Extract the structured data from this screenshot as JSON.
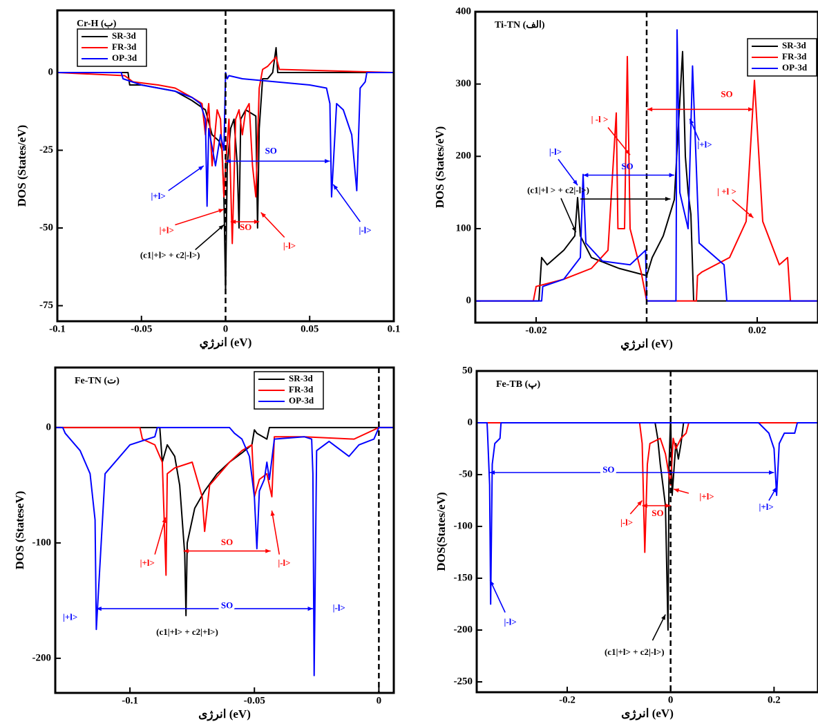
{
  "chart_data": [
    {
      "type": "line",
      "title": "Cr-H (ب)",
      "xlabel": "انرژي (eV)",
      "ylabel": "DOS (States/eV)",
      "xlim": [
        -0.1,
        0.1
      ],
      "ylim": [
        -80,
        20
      ],
      "xticks": [
        -0.1,
        -0.05,
        0,
        0.05,
        0.1
      ],
      "yticks": [
        0,
        -25,
        -50,
        -75
      ],
      "vline": 0,
      "legend": "upper left",
      "series": [
        {
          "name": "SR-3d",
          "color": "#000000",
          "x": [
            -0.1,
            -0.058,
            -0.057,
            -0.05,
            -0.03,
            -0.02,
            -0.012,
            -0.008,
            -0.004,
            -0.002,
            -0.001,
            0,
            0.001,
            0.003,
            0.005,
            0.007,
            0.008,
            0.009,
            0.012,
            0.015,
            0.018,
            0.019,
            0.02,
            0.022,
            0.025,
            0.028,
            0.03,
            0.031,
            0.1
          ],
          "values": [
            0,
            0,
            -4,
            -4,
            -6,
            -9,
            -12,
            -20,
            -22,
            -25,
            -40,
            -70,
            -30,
            -18,
            -15,
            -30,
            -50,
            -15,
            -12,
            -13,
            -14,
            -50,
            -18,
            -2,
            -2,
            0,
            8,
            0,
            0
          ]
        },
        {
          "name": "FR-3d",
          "color": "#ff0000",
          "x": [
            -0.1,
            -0.06,
            -0.055,
            -0.04,
            -0.03,
            -0.02,
            -0.014,
            -0.012,
            -0.01,
            -0.008,
            -0.005,
            -0.003,
            -0.001,
            0,
            0.002,
            0.004,
            0.006,
            0.008,
            0.01,
            0.012,
            0.014,
            0.016,
            0.018,
            0.02,
            0.022,
            0.025,
            0.03,
            0.032,
            0.1
          ],
          "values": [
            0,
            -1,
            -3,
            -4,
            -5,
            -8,
            -10,
            -20,
            -10,
            -30,
            -12,
            -15,
            -40,
            -30,
            -15,
            -55,
            -15,
            -12,
            -20,
            -12,
            -10,
            -30,
            -40,
            -5,
            1,
            2,
            5,
            1,
            0
          ]
        },
        {
          "name": "OP-3d",
          "color": "#0000ff",
          "x": [
            -0.1,
            -0.062,
            -0.061,
            -0.05,
            -0.03,
            -0.02,
            -0.015,
            -0.012,
            -0.011,
            -0.01,
            -0.006,
            -0.003,
            -0.001,
            0,
            0.001,
            0.002,
            0.01,
            0.03,
            0.05,
            0.06,
            0.062,
            0.063,
            0.066,
            0.07,
            0.075,
            0.078,
            0.08,
            0.083,
            0.084,
            0.1
          ],
          "values": [
            0,
            0,
            -2,
            -4,
            -6,
            -8,
            -10,
            -15,
            -43,
            -18,
            -30,
            -20,
            -25,
            0,
            -2,
            -1,
            -2,
            -3,
            -4,
            -5,
            -10,
            -40,
            -10,
            -12,
            -20,
            -38,
            -5,
            -3,
            0,
            0
          ]
        }
      ],
      "annotations": [
        "SO",
        "|+l>",
        "|+l>",
        "SO",
        "|-l>",
        "|-l>",
        "(c1|+l> + c2|-l>)"
      ]
    },
    {
      "type": "line",
      "title": "Ti-TN (الف)",
      "xlabel": "انرژي (eV)",
      "ylabel": "DOS (States/eV)",
      "xlim": [
        -0.031,
        0.031
      ],
      "ylim": [
        -30,
        400
      ],
      "xticks": [
        -0.02,
        0.02
      ],
      "yticks": [
        0,
        100,
        200,
        300,
        400
      ],
      "vline": 0,
      "legend": "upper right",
      "series": [
        {
          "name": "SR-3d",
          "color": "#000000",
          "x": [
            -0.031,
            -0.0195,
            -0.019,
            -0.018,
            -0.015,
            -0.013,
            -0.0125,
            -0.012,
            -0.01,
            -0.005,
            0,
            0.001,
            0.003,
            0.005,
            0.0065,
            0.007,
            0.0075,
            0.008,
            0.0085,
            0.031
          ],
          "values": [
            0,
            0,
            60,
            50,
            70,
            90,
            143,
            90,
            60,
            45,
            35,
            60,
            90,
            140,
            345,
            200,
            150,
            120,
            0,
            0
          ]
        },
        {
          "name": "FR-3d",
          "color": "#ff0000",
          "x": [
            -0.031,
            -0.0205,
            -0.02,
            -0.015,
            -0.01,
            -0.007,
            -0.0055,
            -0.0052,
            -0.004,
            -0.0035,
            -0.003,
            -0.001,
            0,
            0.009,
            0.0092,
            0.01,
            0.015,
            0.018,
            0.0195,
            0.021,
            0.024,
            0.0255,
            0.026,
            0.031
          ],
          "values": [
            0,
            0,
            20,
            30,
            45,
            70,
            260,
            100,
            100,
            338,
            100,
            40,
            0,
            0,
            35,
            40,
            60,
            110,
            305,
            110,
            50,
            60,
            0,
            0
          ]
        },
        {
          "name": "OP-3d",
          "color": "#0000ff",
          "x": [
            -0.031,
            -0.019,
            -0.0188,
            -0.015,
            -0.012,
            -0.0115,
            -0.011,
            -0.008,
            -0.003,
            -0.0002,
            0,
            0.0053,
            0.0055,
            0.006,
            0.0075,
            0.0083,
            0.0095,
            0.014,
            0.0145,
            0.031
          ],
          "values": [
            0,
            0,
            20,
            30,
            60,
            175,
            80,
            55,
            50,
            70,
            0,
            0,
            375,
            150,
            100,
            325,
            80,
            50,
            0,
            0
          ]
        }
      ],
      "annotations": [
        "SO",
        "| -l >",
        "|+l>",
        "|-l>",
        "SO",
        "| +l >",
        "(c1|+l > + c2|-l>)"
      ]
    },
    {
      "type": "line",
      "title": "Fe-TN (ت)",
      "xlabel": "انرژی (eV)",
      "ylabel": "DOS (StateseV)",
      "xlim": [
        -0.13,
        0.006
      ],
      "ylim": [
        -230,
        52
      ],
      "xticks": [
        -0.1,
        -0.05,
        0
      ],
      "yticks": [
        0,
        -100,
        -200
      ],
      "vline": 0,
      "legend": "upper right",
      "series": [
        {
          "name": "SR-3d",
          "color": "#000000",
          "x": [
            -0.13,
            -0.088,
            -0.087,
            -0.085,
            -0.082,
            -0.08,
            -0.078,
            -0.0775,
            -0.077,
            -0.074,
            -0.07,
            -0.065,
            -0.06,
            -0.055,
            -0.051,
            -0.05,
            -0.049,
            -0.045,
            -0.044,
            0.006
          ],
          "values": [
            0,
            0,
            -30,
            -15,
            -25,
            -50,
            -110,
            -163,
            -100,
            -70,
            -55,
            -40,
            -30,
            -22,
            -15,
            -2,
            -5,
            -10,
            0,
            0
          ]
        },
        {
          "name": "FR-3d",
          "color": "#ff0000",
          "x": [
            -0.13,
            -0.096,
            -0.095,
            -0.09,
            -0.087,
            -0.0855,
            -0.085,
            -0.082,
            -0.075,
            -0.071,
            -0.07,
            -0.068,
            -0.06,
            -0.055,
            -0.051,
            -0.05,
            -0.048,
            -0.045,
            -0.043,
            -0.042,
            -0.03,
            -0.01,
            0,
            0.006
          ],
          "values": [
            0,
            0,
            -10,
            -15,
            -30,
            -128,
            -40,
            -35,
            -30,
            -60,
            -90,
            -50,
            -30,
            -20,
            -15,
            -60,
            -45,
            -40,
            -60,
            -8,
            -8,
            -10,
            0,
            0
          ]
        },
        {
          "name": "OP-3d",
          "color": "#0000ff",
          "x": [
            -0.13,
            -0.127,
            -0.126,
            -0.12,
            -0.116,
            -0.114,
            -0.1135,
            -0.11,
            -0.1,
            -0.09,
            -0.089,
            -0.06,
            -0.058,
            -0.055,
            -0.052,
            -0.05,
            -0.049,
            -0.048,
            -0.046,
            -0.045,
            -0.044,
            -0.042,
            -0.03,
            -0.027,
            -0.0265,
            -0.026,
            -0.025,
            -0.02,
            -0.012,
            -0.008,
            -0.002,
            0,
            0.006
          ],
          "values": [
            0,
            0,
            -5,
            -20,
            -40,
            -80,
            -175,
            -40,
            -15,
            -8,
            0,
            0,
            -5,
            -10,
            -25,
            -60,
            -105,
            -55,
            -45,
            -30,
            -45,
            -10,
            -8,
            -10,
            -40,
            -215,
            -20,
            -12,
            -25,
            -15,
            -10,
            0,
            0
          ]
        }
      ],
      "annotations": [
        "SO",
        "|+l>",
        "|-l>",
        "SO",
        "|+l>",
        "|-l>",
        "(c1|+l> + c2|+l>)"
      ]
    },
    {
      "type": "line",
      "title": "Fe-TB (پ)",
      "xlabel": "انرژی (eV)",
      "ylabel": "DOS(States/eV)",
      "xlim": [
        -0.375,
        0.285
      ],
      "ylim": [
        -260,
        50
      ],
      "xticks": [
        -0.2,
        0,
        0.2
      ],
      "yticks": [
        50,
        0,
        -50,
        -100,
        -150,
        -200,
        -250
      ],
      "vline": 0,
      "series": [
        {
          "name": "SR-3d",
          "color": "#000000",
          "x": [
            -0.375,
            -0.03,
            -0.025,
            -0.02,
            -0.015,
            -0.01,
            -0.005,
            -0.003,
            0,
            0.003,
            0.01,
            0.015,
            0.02,
            0.025,
            0.285
          ],
          "values": [
            0,
            0,
            -15,
            -40,
            -60,
            -80,
            -200,
            -40,
            5,
            -70,
            -20,
            -35,
            -20,
            0,
            0
          ]
        },
        {
          "name": "FR-3d",
          "color": "#ff0000",
          "x": [
            -0.375,
            -0.06,
            -0.055,
            -0.05,
            -0.045,
            -0.04,
            -0.02,
            -0.01,
            0,
            0.005,
            0.01,
            0.02,
            0.03,
            0.035,
            0.285
          ],
          "values": [
            0,
            0,
            -20,
            -125,
            -40,
            -20,
            -15,
            -30,
            -60,
            -15,
            -25,
            -15,
            -10,
            0,
            0
          ]
        },
        {
          "name": "OP-3d",
          "color": "#0000ff",
          "x": [
            -0.375,
            -0.355,
            -0.354,
            -0.35,
            -0.348,
            -0.345,
            -0.34,
            -0.33,
            -0.328,
            0.17,
            0.19,
            0.2,
            0.205,
            0.21,
            0.22,
            0.24,
            0.245,
            0.285
          ],
          "values": [
            0,
            0,
            -10,
            -60,
            -175,
            -40,
            -20,
            -15,
            0,
            0,
            -10,
            -25,
            -70,
            -20,
            -10,
            -10,
            0,
            0
          ]
        }
      ],
      "annotations": [
        "SO",
        "|-l>",
        "|+l>",
        "|-l>",
        "SO",
        "|+l>",
        "(c1|+l> + c2|-l>)"
      ]
    }
  ]
}
